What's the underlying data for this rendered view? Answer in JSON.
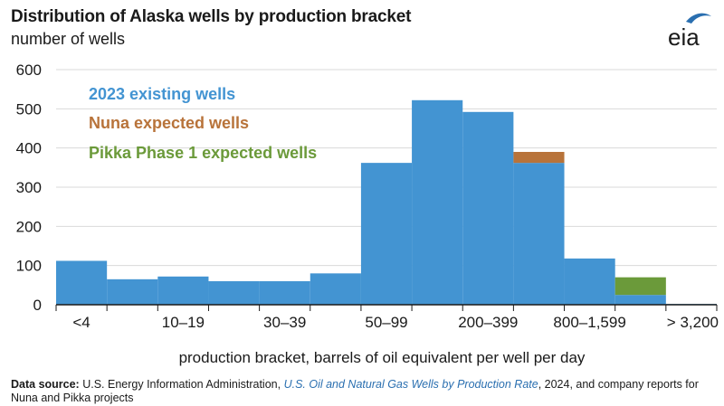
{
  "header": {
    "title": "Distribution of Alaska wells by production bracket",
    "subtitle": "number of wells",
    "logo_text": "eia"
  },
  "source": {
    "label": "Data source:",
    "text_before": "U.S. Energy Information Administration,",
    "link_text": "U.S. Oil and Natural Gas Wells by Production Rate",
    "text_after": ", 2024, and company reports for Nuna and Pikka projects"
  },
  "colors": {
    "existing": "#4394d2",
    "nuna": "#b8733a",
    "pikka": "#6b9a3a",
    "grid": "#d9d9d9",
    "logo": "#2a6fb0"
  },
  "chart_data": {
    "type": "bar",
    "xlabel": "production bracket, barrels of oil equivalent per well per day",
    "ylabel": "number of wells",
    "ylim": [
      0,
      600
    ],
    "yticks": [
      0,
      100,
      200,
      300,
      400,
      500,
      600
    ],
    "grid": true,
    "legend_position": "top-left",
    "categories": [
      "<4",
      "",
      "10–19",
      "",
      "30–39",
      "",
      "50–99",
      "",
      "200–399",
      "",
      "800–1,599",
      "",
      "> 3,200"
    ],
    "series": [
      {
        "name": "2023 existing wells",
        "color": "#4394d2",
        "values": [
          112,
          65,
          72,
          60,
          60,
          80,
          362,
          522,
          492,
          362,
          118,
          25,
          2
        ]
      },
      {
        "name": "Nuna expected wells",
        "color": "#b8733a",
        "values": [
          0,
          0,
          0,
          0,
          0,
          0,
          0,
          0,
          0,
          28,
          0,
          0,
          0
        ]
      },
      {
        "name": "Pikka Phase 1 expected wells",
        "color": "#6b9a3a",
        "values": [
          0,
          0,
          0,
          0,
          0,
          0,
          0,
          0,
          0,
          0,
          0,
          45,
          0
        ]
      }
    ]
  }
}
